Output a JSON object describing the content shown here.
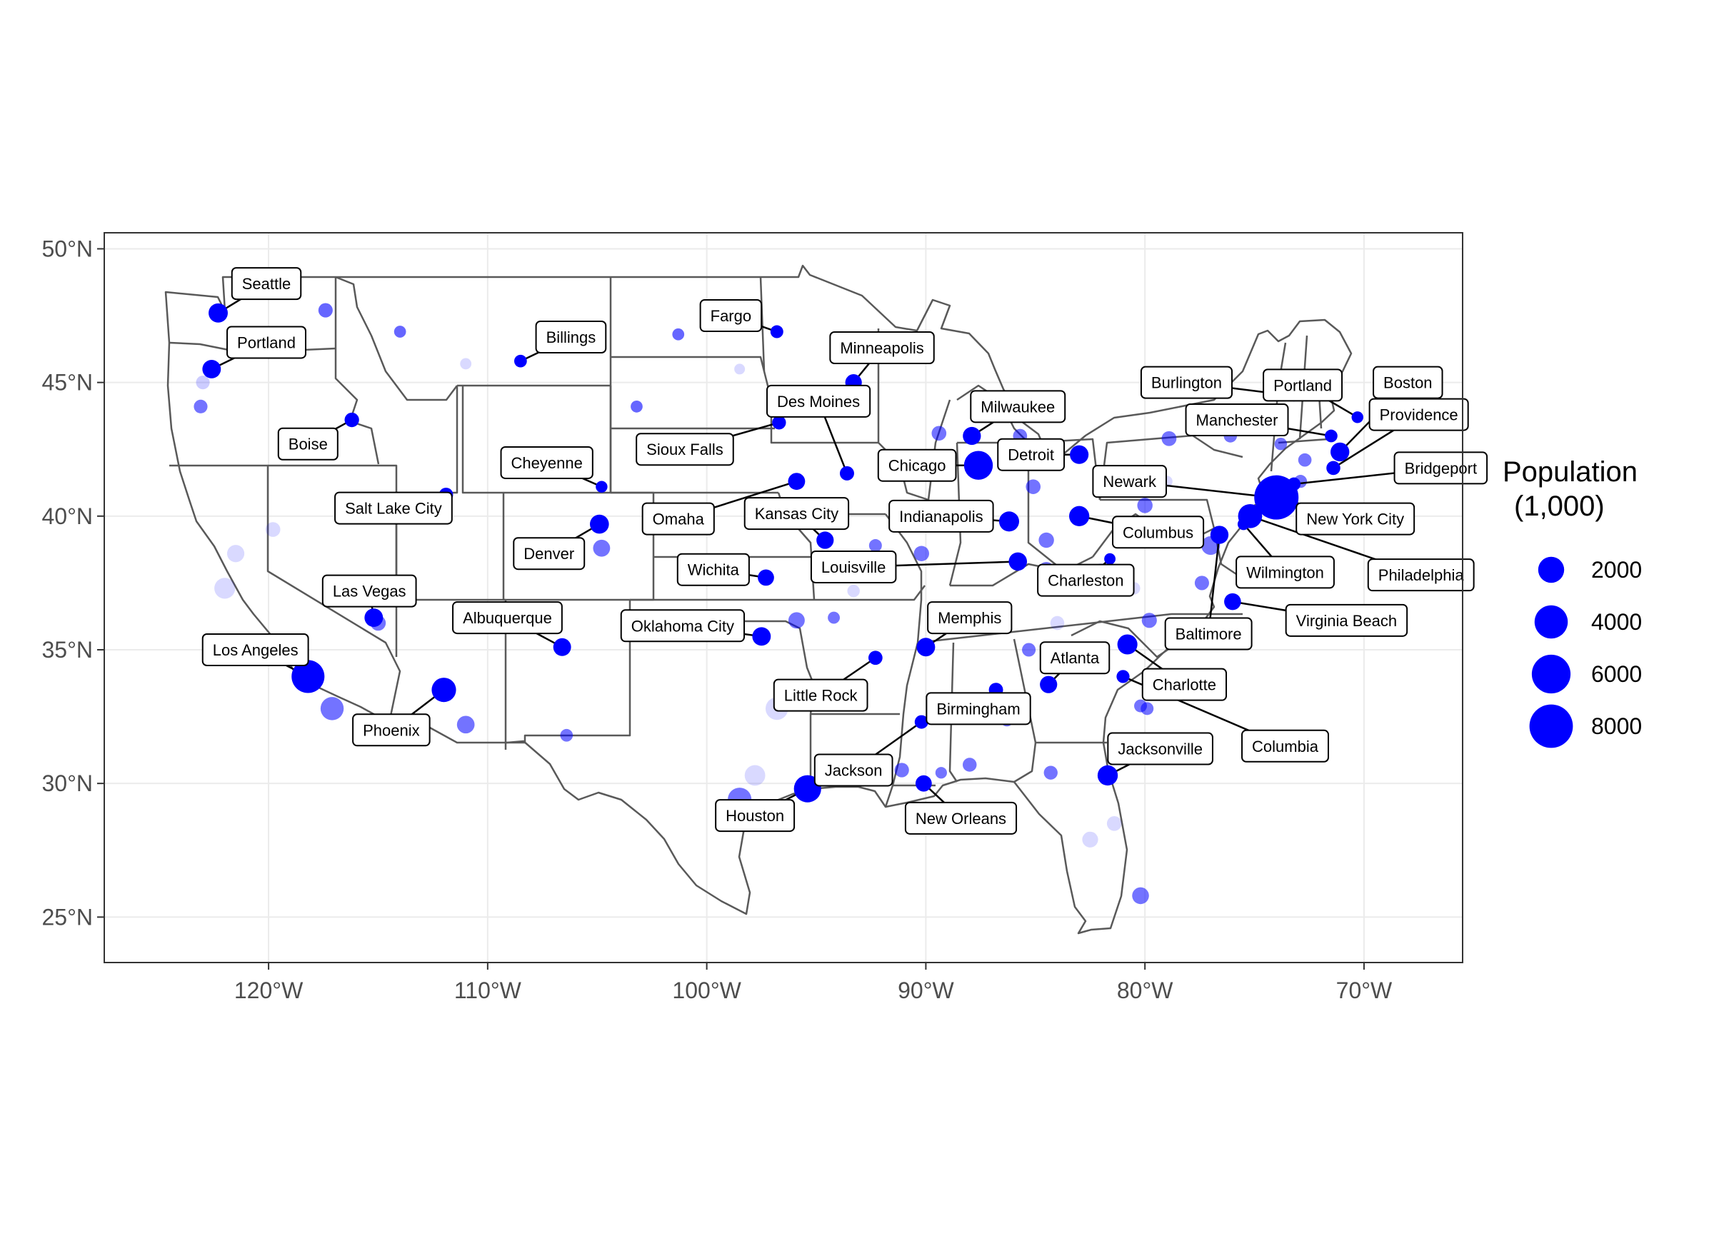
{
  "map": {
    "type": "bubble-map",
    "region": "Contiguous United States",
    "lon_range": [
      -127.5,
      -65.5
    ],
    "lat_range": [
      23.3,
      50.6
    ],
    "x_ticks": [
      {
        "lon": -120,
        "label": "120°W"
      },
      {
        "lon": -110,
        "label": "110°W"
      },
      {
        "lon": -100,
        "label": "100°W"
      },
      {
        "lon": -90,
        "label": "90°W"
      },
      {
        "lon": -80,
        "label": "80°W"
      },
      {
        "lon": -70,
        "label": "70°W"
      }
    ],
    "y_ticks": [
      {
        "lat": 25,
        "label": "25°N"
      },
      {
        "lat": 30,
        "label": "30°N"
      },
      {
        "lat": 35,
        "label": "35°N"
      },
      {
        "lat": 40,
        "label": "40°N"
      },
      {
        "lat": 45,
        "label": "45°N"
      },
      {
        "lat": 50,
        "label": "50°N"
      }
    ],
    "colors": {
      "point": "#0000ff",
      "border": "#595959",
      "grid": "#ebebeb",
      "panel_border": "#333333"
    }
  },
  "legend": {
    "title_line1": "Population",
    "title_line2": "(1,000)",
    "entries": [
      {
        "value": 2000,
        "label": "2000"
      },
      {
        "value": 4000,
        "label": "4000"
      },
      {
        "value": 6000,
        "label": "6000"
      },
      {
        "value": 8000,
        "label": "8000"
      }
    ]
  },
  "cities": [
    {
      "name": "Seattle",
      "lon": -122.3,
      "lat": 47.6,
      "pop": 750,
      "dlon": 2.2,
      "dlat": 1.1
    },
    {
      "name": "Portland",
      "lon": -122.6,
      "lat": 45.5,
      "pop": 650,
      "dlon": 2.5,
      "dlat": 1.0
    },
    {
      "name": "Boise",
      "lon": -116.2,
      "lat": 43.6,
      "pop": 230,
      "dlon": -2.0,
      "dlat": -0.9
    },
    {
      "name": "Billings",
      "lon": -108.5,
      "lat": 45.8,
      "pop": 110,
      "dlon": 2.3,
      "dlat": 0.9
    },
    {
      "name": "Fargo",
      "lon": -96.8,
      "lat": 46.9,
      "pop": 120,
      "dlon": -2.1,
      "dlat": 0.6
    },
    {
      "name": "Minneapolis",
      "lon": -93.3,
      "lat": 45.0,
      "pop": 420,
      "dlon": 1.3,
      "dlat": 1.3
    },
    {
      "name": "Des Moines",
      "lon": -93.6,
      "lat": 41.6,
      "pop": 215,
      "dlon": -1.3,
      "dlat": 2.7
    },
    {
      "name": "Sioux Falls",
      "lon": -96.7,
      "lat": 43.5,
      "pop": 180,
      "dlon": -4.3,
      "dlat": -1.0
    },
    {
      "name": "Cheyenne",
      "lon": -104.8,
      "lat": 41.1,
      "pop": 65,
      "dlon": -2.5,
      "dlat": 0.9
    },
    {
      "name": "Salt Lake City",
      "lon": -111.9,
      "lat": 40.8,
      "pop": 200,
      "dlon": -2.4,
      "dlat": -0.5
    },
    {
      "name": "Denver",
      "lon": -104.9,
      "lat": 39.7,
      "pop": 720,
      "dlon": -2.3,
      "dlat": -1.1
    },
    {
      "name": "Omaha",
      "lon": -95.9,
      "lat": 41.3,
      "pop": 470,
      "dlon": -5.4,
      "dlat": -1.4
    },
    {
      "name": "Kansas City",
      "lon": -94.6,
      "lat": 39.1,
      "pop": 500,
      "dlon": -1.3,
      "dlat": 1.0
    },
    {
      "name": "Wichita",
      "lon": -97.3,
      "lat": 37.7,
      "pop": 390,
      "dlon": -2.4,
      "dlat": 0.3
    },
    {
      "name": "Louisville",
      "lon": -85.8,
      "lat": 38.3,
      "pop": 620,
      "dlon": -7.5,
      "dlat": -0.2
    },
    {
      "name": "Las Vegas",
      "lon": -115.2,
      "lat": 36.2,
      "pop": 650,
      "dlon": -0.2,
      "dlat": 1.0
    },
    {
      "name": "Albuquerque",
      "lon": -106.6,
      "lat": 35.1,
      "pop": 560,
      "dlon": -2.5,
      "dlat": 1.1
    },
    {
      "name": "Oklahoma City",
      "lon": -97.5,
      "lat": 35.5,
      "pop": 650,
      "dlon": -3.6,
      "dlat": 0.4
    },
    {
      "name": "Los Angeles",
      "lon": -118.2,
      "lat": 34.0,
      "pop": 3900,
      "dlon": -2.4,
      "dlat": 1.0
    },
    {
      "name": "Phoenix",
      "lon": -112.0,
      "lat": 33.5,
      "pop": 1650,
      "dlon": -2.4,
      "dlat": -1.5
    },
    {
      "name": "Little Rock",
      "lon": -92.3,
      "lat": 34.7,
      "pop": 200,
      "dlon": -2.5,
      "dlat": -1.4
    },
    {
      "name": "Memphis",
      "lon": -90.0,
      "lat": 35.1,
      "pop": 650,
      "dlon": 2.0,
      "dlat": 1.1
    },
    {
      "name": "Birmingham",
      "lon": -86.8,
      "lat": 33.5,
      "pop": 210,
      "dlon": -0.8,
      "dlat": -0.7
    },
    {
      "name": "Jackson",
      "lon": -90.2,
      "lat": 32.3,
      "pop": 165,
      "dlon": -3.1,
      "dlat": -1.8
    },
    {
      "name": "Houston",
      "lon": -95.4,
      "lat": 29.8,
      "pop": 2300,
      "dlon": -2.4,
      "dlat": -1.0
    },
    {
      "name": "New Orleans",
      "lon": -90.1,
      "lat": 30.0,
      "pop": 390,
      "dlon": 1.7,
      "dlat": -1.3
    },
    {
      "name": "Chicago",
      "lon": -87.6,
      "lat": 41.9,
      "pop": 2700,
      "dlon": -2.8,
      "dlat": 0.0
    },
    {
      "name": "Milwaukee",
      "lon": -87.9,
      "lat": 43.0,
      "pop": 590,
      "dlon": 2.1,
      "dlat": 1.1
    },
    {
      "name": "Detroit",
      "lon": -83.0,
      "lat": 42.3,
      "pop": 670,
      "dlon": -2.2,
      "dlat": 0.0
    },
    {
      "name": "Indianapolis",
      "lon": -86.2,
      "lat": 39.8,
      "pop": 870,
      "dlon": -3.1,
      "dlat": 0.2
    },
    {
      "name": "Columbus",
      "lon": -83.0,
      "lat": 40.0,
      "pop": 890,
      "dlon": 3.6,
      "dlat": -0.6
    },
    {
      "name": "Charleston",
      "lon": -81.6,
      "lat": 38.4,
      "pop": 50,
      "dlon": -1.1,
      "dlat": -0.8
    },
    {
      "name": "Atlanta",
      "lon": -84.4,
      "lat": 33.7,
      "pop": 500,
      "dlon": 1.2,
      "dlat": 1.0
    },
    {
      "name": "Charlotte",
      "lon": -80.8,
      "lat": 35.2,
      "pop": 870,
      "dlon": 2.6,
      "dlat": -1.5
    },
    {
      "name": "Columbia",
      "lon": -81.0,
      "lat": 34.0,
      "pop": 130,
      "dlon": 7.4,
      "dlat": -2.6
    },
    {
      "name": "Jacksonville",
      "lon": -81.7,
      "lat": 30.3,
      "pop": 900,
      "dlon": 2.4,
      "dlat": 1.0
    },
    {
      "name": "Burlington",
      "lon": -73.2,
      "lat": 44.5,
      "pop": 45,
      "dlon": -4.9,
      "dlat": 0.5
    },
    {
      "name": "Portland",
      "lon": -70.3,
      "lat": 43.7,
      "pop": 67,
      "dlon": -2.5,
      "dlat": 1.2
    },
    {
      "name": "Boston",
      "lon": -71.1,
      "lat": 42.4,
      "pop": 690,
      "dlon": 3.1,
      "dlat": 2.6
    },
    {
      "name": "Manchester",
      "lon": -71.5,
      "lat": 43.0,
      "pop": 110,
      "dlon": -4.3,
      "dlat": 0.6
    },
    {
      "name": "Providence",
      "lon": -71.4,
      "lat": 41.8,
      "pop": 190,
      "dlon": 3.9,
      "dlat": 2.0
    },
    {
      "name": "Bridgeport",
      "lon": -73.2,
      "lat": 41.2,
      "pop": 145,
      "dlon": 6.7,
      "dlat": 0.6
    },
    {
      "name": "Newark",
      "lon": -74.2,
      "lat": 40.7,
      "pop": 280,
      "dlon": -6.5,
      "dlat": 0.6
    },
    {
      "name": "New York City",
      "lon": -74.0,
      "lat": 40.7,
      "pop": 8400,
      "dlon": 3.6,
      "dlat": -0.8
    },
    {
      "name": "Philadelphia",
      "lon": -75.2,
      "lat": 40.0,
      "pop": 1580,
      "dlon": 7.8,
      "dlat": -2.2
    },
    {
      "name": "Wilmington",
      "lon": -75.5,
      "lat": 39.7,
      "pop": 70,
      "dlon": 1.9,
      "dlat": -1.8
    },
    {
      "name": "Baltimore",
      "lon": -76.6,
      "lat": 39.3,
      "pop": 600,
      "dlon": -0.5,
      "dlat": -3.7
    },
    {
      "name": "Virginia Beach",
      "lon": -76.0,
      "lat": 36.8,
      "pop": 450,
      "dlon": 5.2,
      "dlat": -0.7
    }
  ],
  "background_points": [
    {
      "lon": -117.4,
      "lat": 47.7,
      "pop": 220,
      "alpha": 0.6
    },
    {
      "lon": -123.0,
      "lat": 45.0,
      "pop": 170,
      "alpha": 0.2
    },
    {
      "lon": -123.1,
      "lat": 44.1,
      "pop": 170,
      "alpha": 0.55
    },
    {
      "lon": -114.0,
      "lat": 46.9,
      "pop": 75,
      "alpha": 0.6
    },
    {
      "lon": -111.0,
      "lat": 45.7,
      "pop": 50,
      "alpha": 0.15
    },
    {
      "lon": -101.3,
      "lat": 46.8,
      "pop": 75,
      "alpha": 0.6
    },
    {
      "lon": -103.2,
      "lat": 44.1,
      "pop": 75,
      "alpha": 0.6
    },
    {
      "lon": -98.5,
      "lat": 45.5,
      "pop": 30,
      "alpha": 0.15
    },
    {
      "lon": -122.0,
      "lat": 37.3,
      "pop": 1000,
      "alpha": 0.15
    },
    {
      "lon": -121.5,
      "lat": 38.6,
      "pop": 500,
      "alpha": 0.15
    },
    {
      "lon": -119.8,
      "lat": 39.5,
      "pop": 250,
      "alpha": 0.15
    },
    {
      "lon": -117.1,
      "lat": 32.8,
      "pop": 1400,
      "alpha": 0.55
    },
    {
      "lon": -111.0,
      "lat": 32.2,
      "pop": 540,
      "alpha": 0.55
    },
    {
      "lon": -115.0,
      "lat": 36.0,
      "pop": 300,
      "alpha": 0.55
    },
    {
      "lon": -104.8,
      "lat": 38.8,
      "pop": 470,
      "alpha": 0.55
    },
    {
      "lon": -106.4,
      "lat": 31.8,
      "pop": 110,
      "alpha": 0.55
    },
    {
      "lon": -98.5,
      "lat": 29.4,
      "pop": 1500,
      "alpha": 0.55
    },
    {
      "lon": -97.8,
      "lat": 30.3,
      "pop": 950,
      "alpha": 0.15
    },
    {
      "lon": -96.8,
      "lat": 32.8,
      "pop": 1300,
      "alpha": 0.15
    },
    {
      "lon": -95.9,
      "lat": 36.1,
      "pop": 400,
      "alpha": 0.55
    },
    {
      "lon": -94.2,
      "lat": 36.2,
      "pop": 80,
      "alpha": 0.55
    },
    {
      "lon": -92.3,
      "lat": 38.9,
      "pop": 120,
      "alpha": 0.55
    },
    {
      "lon": -90.2,
      "lat": 38.6,
      "pop": 300,
      "alpha": 0.55
    },
    {
      "lon": -89.6,
      "lat": 39.8,
      "pop": 50,
      "alpha": 0.55
    },
    {
      "lon": -93.3,
      "lat": 37.2,
      "pop": 100,
      "alpha": 0.15
    },
    {
      "lon": -89.4,
      "lat": 43.1,
      "pop": 250,
      "alpha": 0.55
    },
    {
      "lon": -85.7,
      "lat": 43.0,
      "pop": 200,
      "alpha": 0.55
    },
    {
      "lon": -85.1,
      "lat": 41.1,
      "pop": 250,
      "alpha": 0.55
    },
    {
      "lon": -84.5,
      "lat": 39.1,
      "pop": 300,
      "alpha": 0.55
    },
    {
      "lon": -84.5,
      "lat": 38.0,
      "pop": 300,
      "alpha": 0.55
    },
    {
      "lon": -86.8,
      "lat": 36.2,
      "pop": 650,
      "alpha": 0.15
    },
    {
      "lon": -84.0,
      "lat": 36.0,
      "pop": 190,
      "alpha": 0.15
    },
    {
      "lon": -85.3,
      "lat": 35.0,
      "pop": 170,
      "alpha": 0.55
    },
    {
      "lon": -86.3,
      "lat": 32.4,
      "pop": 200,
      "alpha": 0.55
    },
    {
      "lon": -88.0,
      "lat": 30.7,
      "pop": 190,
      "alpha": 0.55
    },
    {
      "lon": -89.3,
      "lat": 30.4,
      "pop": 60,
      "alpha": 0.55
    },
    {
      "lon": -91.1,
      "lat": 30.5,
      "pop": 230,
      "alpha": 0.55
    },
    {
      "lon": -84.3,
      "lat": 30.4,
      "pop": 180,
      "alpha": 0.55
    },
    {
      "lon": -82.5,
      "lat": 27.9,
      "pop": 350,
      "alpha": 0.15
    },
    {
      "lon": -80.2,
      "lat": 25.8,
      "pop": 450,
      "alpha": 0.55
    },
    {
      "lon": -81.4,
      "lat": 28.5,
      "pop": 250,
      "alpha": 0.15
    },
    {
      "lon": -79.9,
      "lat": 32.8,
      "pop": 120,
      "alpha": 0.55
    },
    {
      "lon": -80.2,
      "lat": 32.9,
      "pop": 120,
      "alpha": 0.55
    },
    {
      "lon": -78.6,
      "lat": 35.8,
      "pop": 450,
      "alpha": 0.55
    },
    {
      "lon": -79.8,
      "lat": 36.1,
      "pop": 280,
      "alpha": 0.55
    },
    {
      "lon": -77.4,
      "lat": 37.5,
      "pop": 220,
      "alpha": 0.55
    },
    {
      "lon": -80.0,
      "lat": 40.4,
      "pop": 300,
      "alpha": 0.55
    },
    {
      "lon": -79.0,
      "lat": 41.3,
      "pop": 50,
      "alpha": 0.15
    },
    {
      "lon": -77.0,
      "lat": 38.9,
      "pop": 680,
      "alpha": 0.55
    },
    {
      "lon": -78.9,
      "lat": 42.9,
      "pop": 260,
      "alpha": 0.55
    },
    {
      "lon": -76.1,
      "lat": 43.0,
      "pop": 140,
      "alpha": 0.55
    },
    {
      "lon": -73.8,
      "lat": 42.7,
      "pop": 100,
      "alpha": 0.55
    },
    {
      "lon": -72.7,
      "lat": 42.1,
      "pop": 150,
      "alpha": 0.55
    },
    {
      "lon": -72.9,
      "lat": 41.3,
      "pop": 130,
      "alpha": 0.55
    },
    {
      "lon": -82.0,
      "lat": 38.0,
      "pop": 120,
      "alpha": 0.15
    },
    {
      "lon": -80.5,
      "lat": 37.3,
      "pop": 100,
      "alpha": 0.15
    },
    {
      "lon": -80.9,
      "lat": 39.2,
      "pop": 50,
      "alpha": 0.55
    }
  ]
}
